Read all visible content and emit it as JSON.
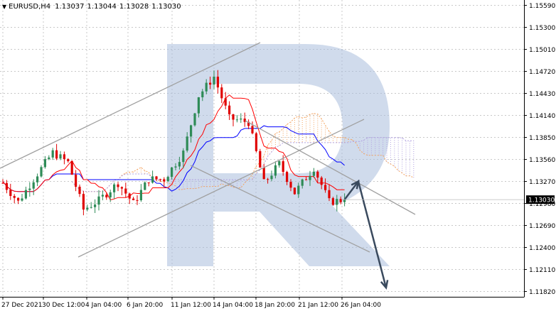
{
  "header": {
    "symbol": "EURUSD,H4",
    "open": "1.13037",
    "high": "1.13044",
    "low": "1.13028",
    "close": "1.13030"
  },
  "price_tag": "1.13030",
  "colors": {
    "bull_candle": "#2e8b57",
    "bear_candle": "#e00000",
    "tenkan_sen": "#ff0000",
    "kijun_sen": "#0000ff",
    "kumo_bull": "#f4a460",
    "kumo_bear": "#b0a0e0",
    "trend_line": "#a0a0a0",
    "forecast_arrow": "#3a4a5e",
    "watermark": "#a9bddc",
    "grid": "#c8c8c8",
    "price_tag_bg": "#000000"
  },
  "chart_data": {
    "type": "candlestick",
    "title": "EURUSD,H4",
    "y_tick_labels": [
      "1.15590",
      "1.15300",
      "1.15010",
      "1.14720",
      "1.14430",
      "1.14140",
      "1.13850",
      "1.13560",
      "1.13270",
      "1.12980",
      "1.12690",
      "1.12400",
      "1.12110",
      "1.11820"
    ],
    "x_tick_labels": [
      "27 Dec 2021",
      "30 Dec 12:00",
      "4 Jan 04:00",
      "6 Jan 20:00",
      "11 Jan 12:00",
      "14 Jan 04:00",
      "18 Jan 20:00",
      "21 Jan 12:00",
      "26 Jan 04:00"
    ],
    "ylim": [
      1.1175,
      1.1566
    ],
    "grid": true,
    "last_price": 1.1303,
    "indicators": [
      "Ichimoku Kinko Hyo (Tenkan-sen, Kijun-sen, Kumo cloud)"
    ],
    "price_path": [
      {
        "date": "2021-12-27",
        "close": 1.1325
      },
      {
        "date": "2021-12-28",
        "close": 1.13
      },
      {
        "date": "2021-12-29",
        "close": 1.133
      },
      {
        "date": "2021-12-30",
        "close": 1.1365
      },
      {
        "date": "2021-12-31",
        "close": 1.1352
      },
      {
        "date": "2022-01-03",
        "close": 1.129
      },
      {
        "date": "2022-01-04",
        "close": 1.1302
      },
      {
        "date": "2022-01-05",
        "close": 1.1325
      },
      {
        "date": "2022-01-06",
        "close": 1.1298
      },
      {
        "date": "2022-01-07",
        "close": 1.133
      },
      {
        "date": "2022-01-10",
        "close": 1.133
      },
      {
        "date": "2022-01-11",
        "close": 1.1365
      },
      {
        "date": "2022-01-12",
        "close": 1.144
      },
      {
        "date": "2022-01-13",
        "close": 1.1465
      },
      {
        "date": "2022-01-14",
        "close": 1.141
      },
      {
        "date": "2022-01-17",
        "close": 1.1405
      },
      {
        "date": "2022-01-18",
        "close": 1.1325
      },
      {
        "date": "2022-01-19",
        "close": 1.135
      },
      {
        "date": "2022-01-20",
        "close": 1.1312
      },
      {
        "date": "2022-01-21",
        "close": 1.1345
      },
      {
        "date": "2022-01-24",
        "close": 1.13
      },
      {
        "date": "2022-01-25",
        "close": 1.1303
      }
    ],
    "trend_channels": [
      {
        "name": "ascending-channel",
        "direction": "up"
      },
      {
        "name": "descending-channel",
        "direction": "down"
      }
    ],
    "forecast": {
      "first_target": 1.1327,
      "final_target": 1.1187
    }
  }
}
